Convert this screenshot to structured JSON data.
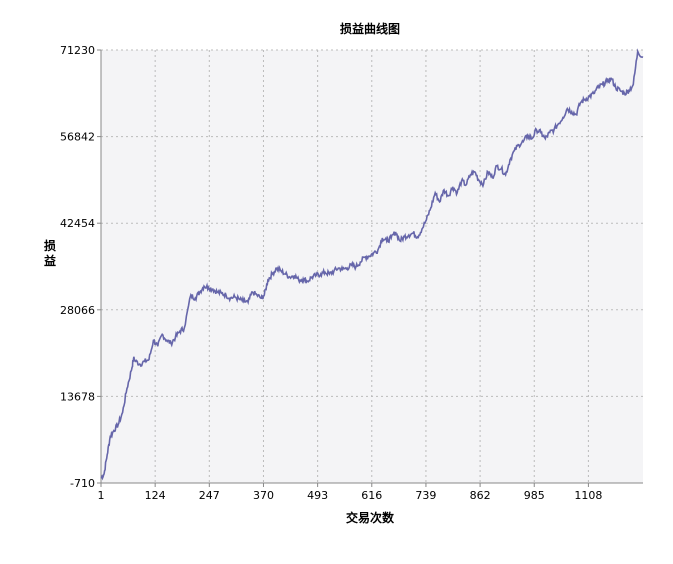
{
  "chart_data": {
    "type": "line",
    "title": "损益曲线图",
    "xlabel": "交易次数",
    "ylabel": "损益",
    "x_ticks": [
      1,
      124,
      247,
      370,
      493,
      616,
      739,
      862,
      985,
      1108
    ],
    "y_ticks": [
      -710,
      13678,
      28066,
      42454,
      56842,
      71230
    ],
    "xlim": [
      1,
      1232
    ],
    "ylim": [
      -710,
      71230
    ],
    "grid": true,
    "line_color": "#6666aa",
    "plot_bg": "#f4f4f6",
    "grid_color": "#bbbbbb",
    "series": [
      {
        "x": [
          1,
          8,
          15,
          22,
          30,
          40,
          50,
          60,
          70,
          75,
          80,
          90,
          100,
          110,
          120,
          130,
          140,
          150,
          160,
          170,
          180,
          190,
          205,
          215,
          225,
          235,
          245,
          255,
          265,
          275,
          285,
          295,
          305,
          315,
          325,
          335,
          345,
          355,
          365,
          372,
          380,
          390,
          400,
          410,
          420,
          430,
          440,
          450,
          460,
          470,
          480,
          490,
          500,
          510,
          520,
          530,
          540,
          550,
          560,
          570,
          580,
          590,
          600,
          610,
          620,
          630,
          640,
          650,
          660,
          670,
          680,
          690,
          700,
          710,
          720,
          730,
          740,
          750,
          760,
          770,
          780,
          790,
          800,
          810,
          820,
          830,
          840,
          850,
          860,
          870,
          880,
          890,
          900,
          910,
          920,
          930,
          940,
          950,
          960,
          970,
          980,
          990,
          1000,
          1010,
          1020,
          1030,
          1040,
          1050,
          1060,
          1070,
          1080,
          1090,
          1100,
          1110,
          1120,
          1130,
          1140,
          1150,
          1160,
          1170,
          1180,
          1190,
          1200,
          1210,
          1220,
          1232
        ],
        "values": [
          100,
          800,
          4000,
          7000,
          8000,
          9000,
          11000,
          15000,
          18000,
          20000,
          19500,
          19000,
          19500,
          19800,
          23000,
          22000,
          24000,
          23000,
          22500,
          23500,
          24500,
          25000,
          30500,
          30000,
          31000,
          32000,
          31800,
          31500,
          31000,
          30800,
          30500,
          30000,
          30200,
          29800,
          29500,
          29300,
          31000,
          30500,
          30000,
          30500,
          33000,
          34000,
          35000,
          34500,
          34000,
          33500,
          33800,
          33000,
          33200,
          32800,
          33500,
          33800,
          34000,
          34300,
          34000,
          34500,
          35000,
          34800,
          35000,
          35500,
          35200,
          36000,
          36800,
          37000,
          37500,
          38000,
          40000,
          39500,
          40000,
          41000,
          39500,
          40200,
          40500,
          40800,
          40200,
          41500,
          43000,
          45000,
          47500,
          46000,
          48000,
          47000,
          48500,
          47500,
          49500,
          48800,
          50500,
          51000,
          49500,
          49000,
          51000,
          50000,
          52000,
          51500,
          50500,
          53000,
          54500,
          55500,
          56000,
          57000,
          56500,
          58000,
          57500,
          56500,
          57500,
          58000,
          59000,
          60000,
          61500,
          61000,
          60500,
          62500,
          63000,
          63500,
          64000,
          65000,
          65500,
          66000,
          66500,
          65000,
          64500,
          64000,
          64500,
          65500,
          71000,
          70000
        ]
      }
    ]
  }
}
